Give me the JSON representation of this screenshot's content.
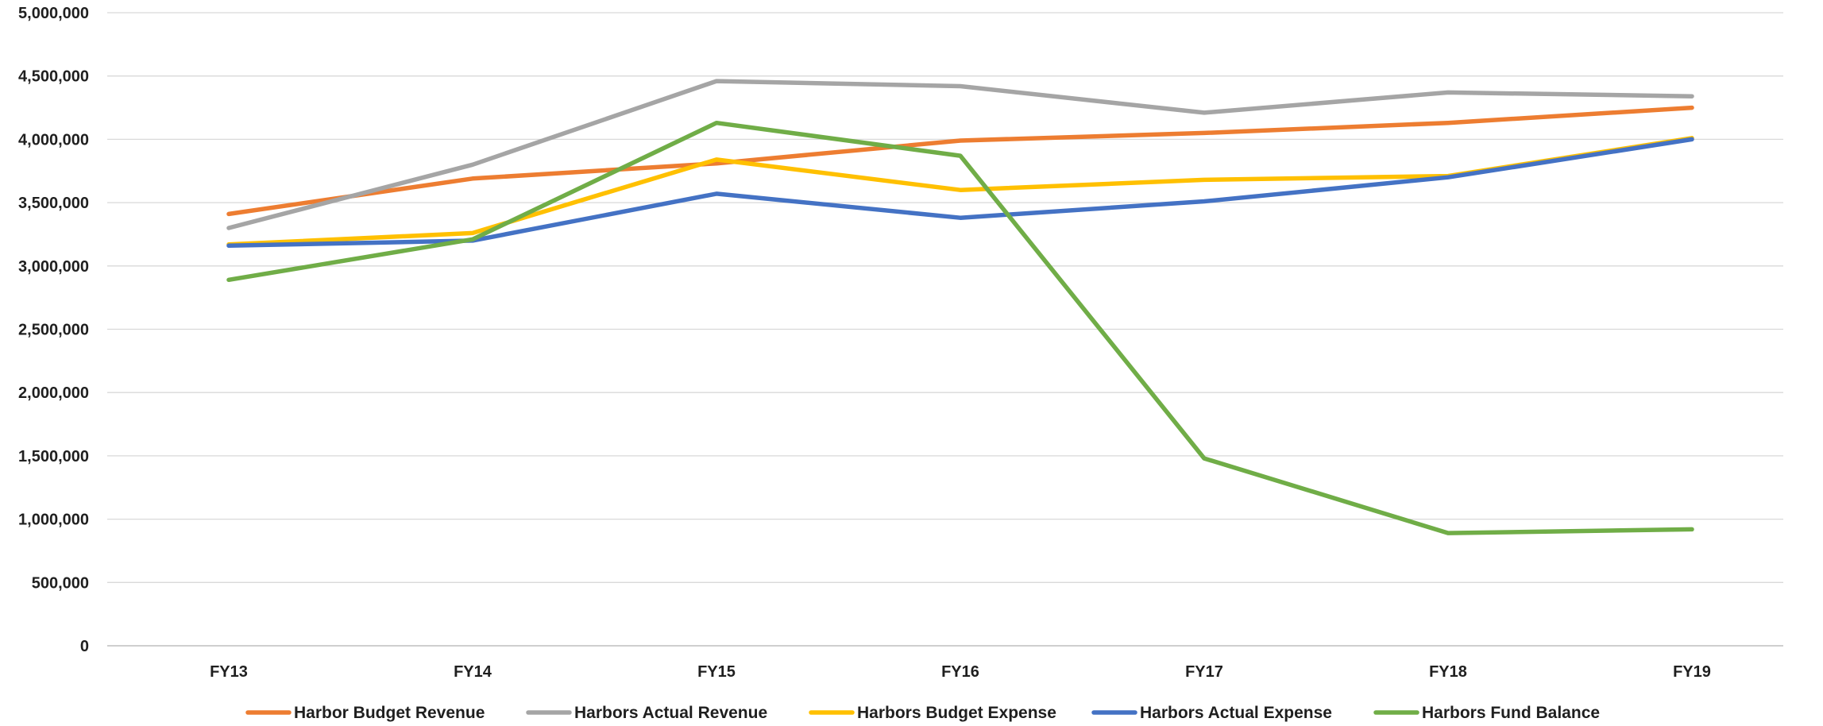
{
  "chart_data": {
    "type": "line",
    "title": "",
    "xlabel": "",
    "ylabel": "",
    "categories": [
      "FY13",
      "FY14",
      "FY15",
      "FY16",
      "FY17",
      "FY18",
      "FY19"
    ],
    "ylim": [
      0,
      5000000
    ],
    "yticks": [
      0,
      500000,
      1000000,
      1500000,
      2000000,
      2500000,
      3000000,
      3500000,
      4000000,
      4500000,
      5000000
    ],
    "ytick_labels": [
      "0",
      "500,000",
      "1,000,000",
      "1,500,000",
      "2,000,000",
      "2,500,000",
      "3,000,000",
      "3,500,000",
      "4,000,000",
      "4,500,000",
      "5,000,000"
    ],
    "grid": true,
    "legend_position": "bottom",
    "series": [
      {
        "name": "Harbor Budget Revenue",
        "color": "#ED7D31",
        "values": [
          3410000,
          3690000,
          3810000,
          3990000,
          4050000,
          4130000,
          4250000
        ]
      },
      {
        "name": "Harbors Actual Revenue",
        "color": "#A5A5A5",
        "values": [
          3300000,
          3800000,
          4460000,
          4420000,
          4210000,
          4370000,
          4340000
        ]
      },
      {
        "name": "Harbors Budget Expense",
        "color": "#FFC000",
        "values": [
          3170000,
          3260000,
          3840000,
          3600000,
          3680000,
          3710000,
          4010000
        ]
      },
      {
        "name": "Harbors Actual Expense",
        "color": "#4472C4",
        "values": [
          3160000,
          3200000,
          3570000,
          3380000,
          3510000,
          3700000,
          4000000
        ]
      },
      {
        "name": "Harbors Fund Balance",
        "color": "#70AD47",
        "values": [
          2890000,
          3210000,
          4130000,
          3870000,
          1480000,
          890000,
          920000
        ]
      }
    ]
  }
}
